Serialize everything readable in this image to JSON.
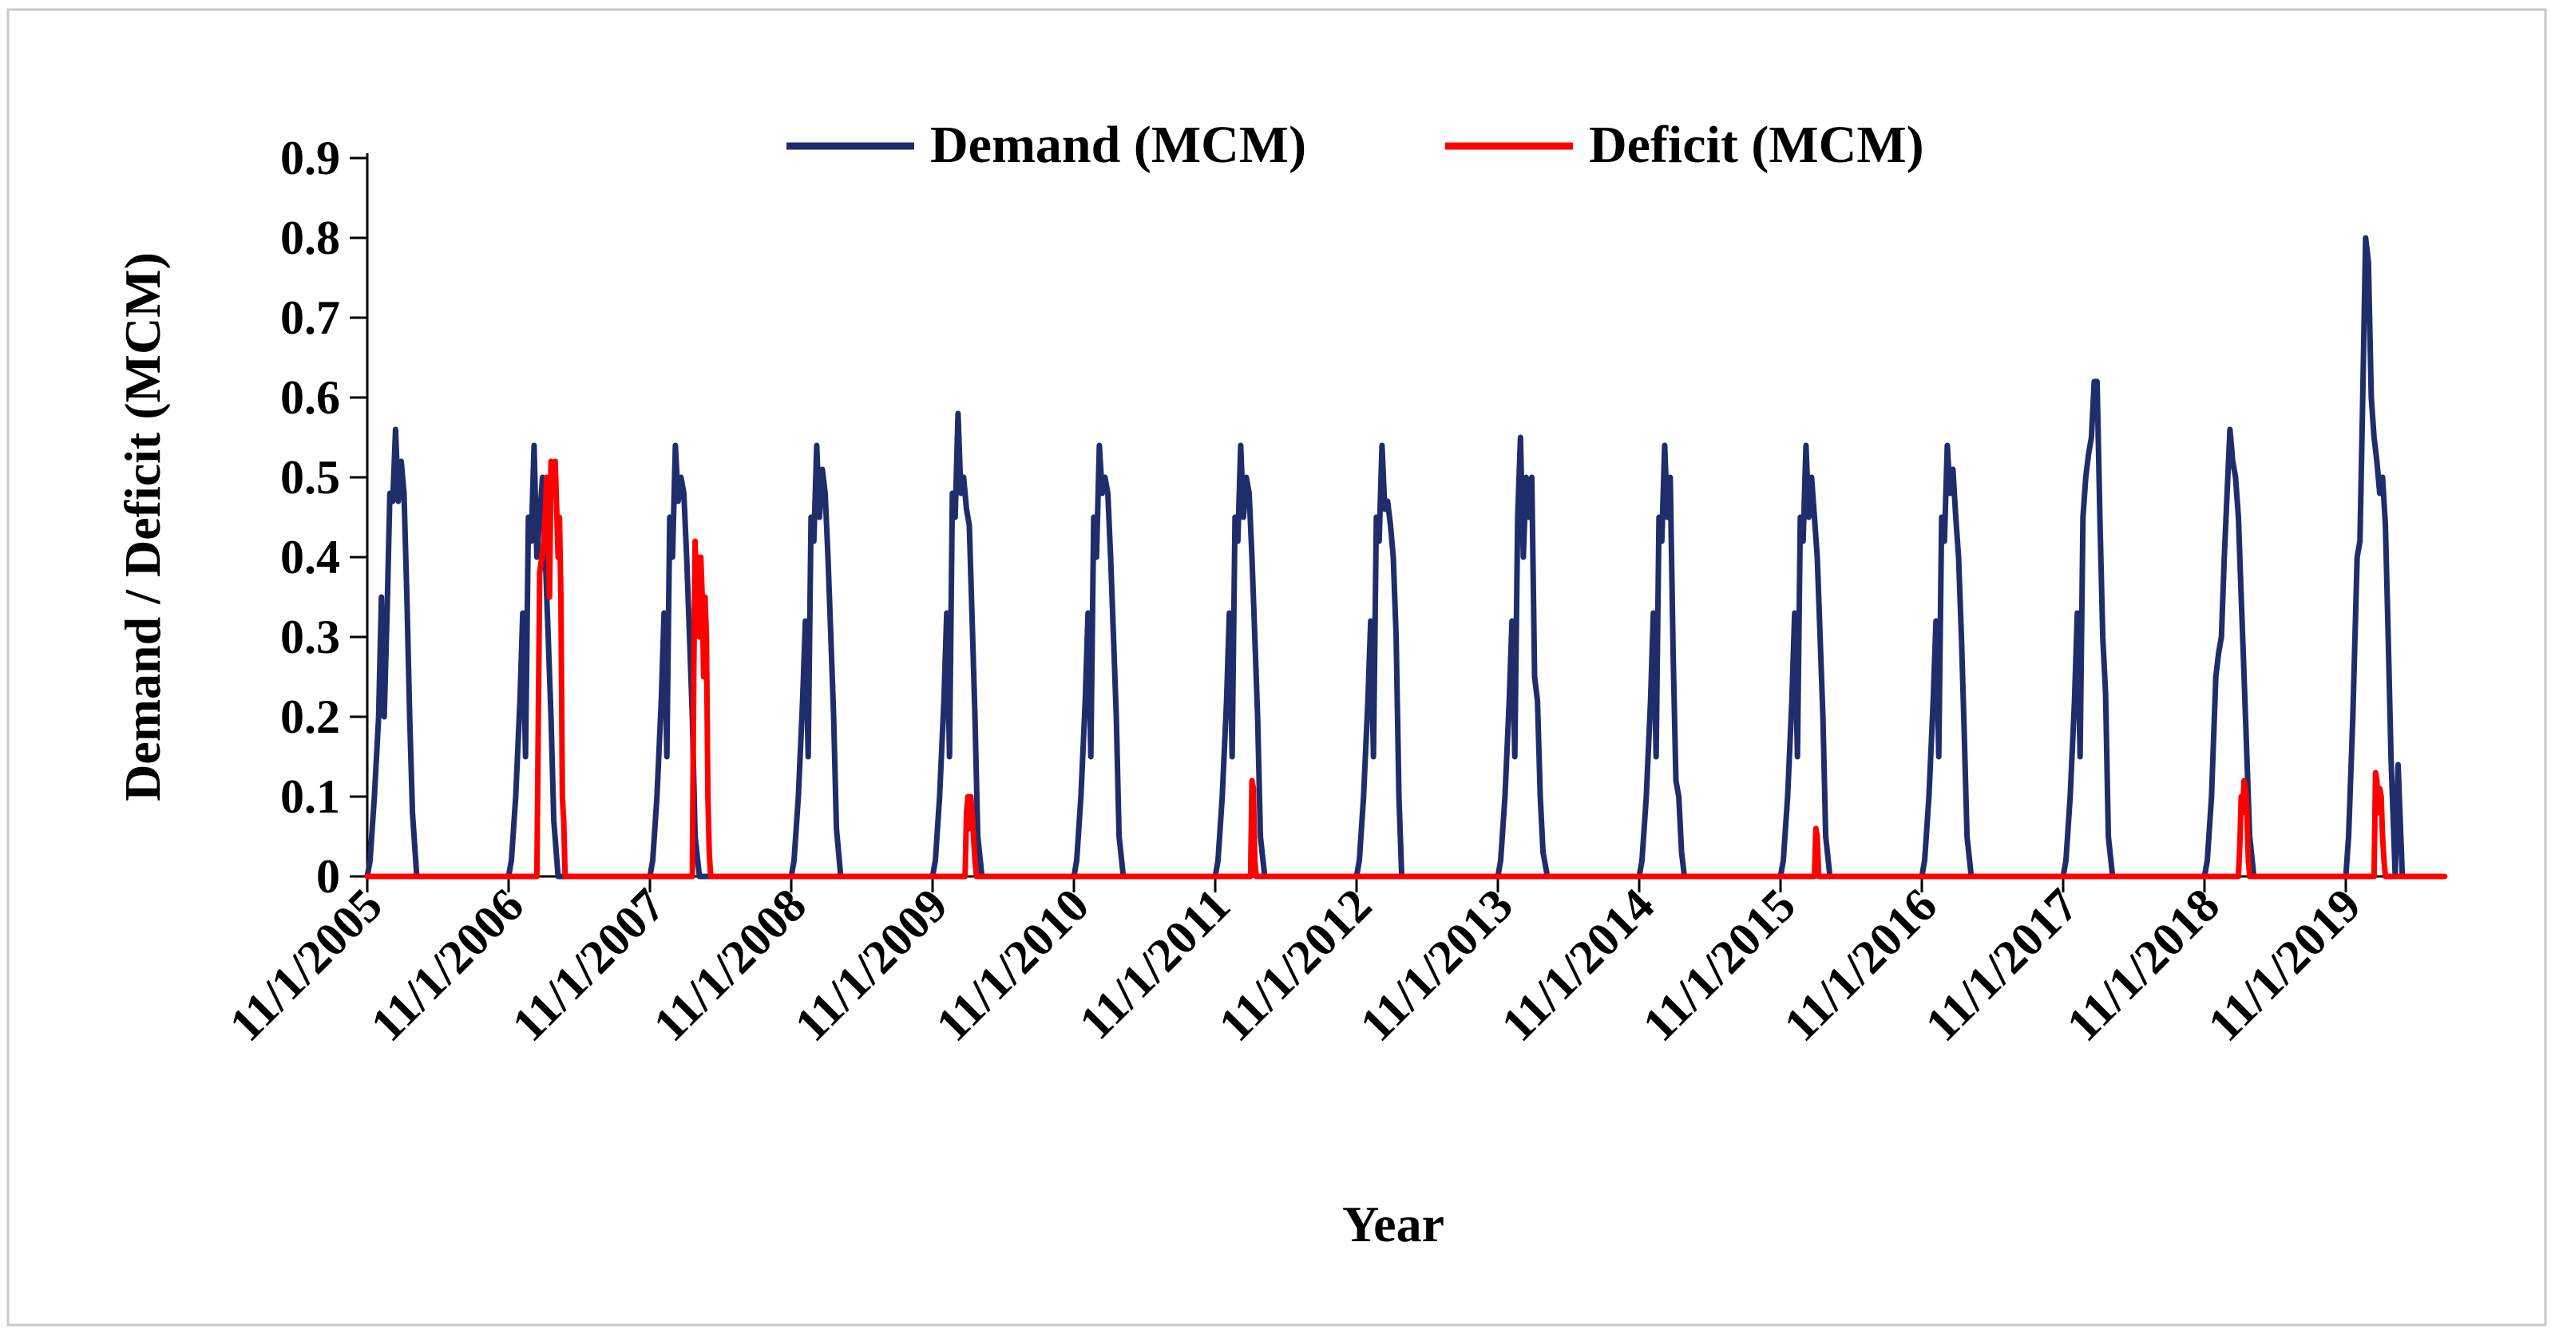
{
  "chart_data": {
    "type": "line",
    "title": "",
    "xlabel": "Year",
    "ylabel": "Demand / Deficit (MCM)",
    "ylim": [
      0,
      0.9
    ],
    "yticks": [
      0,
      0.1,
      0.2,
      0.3,
      0.4,
      0.5,
      0.6,
      0.7,
      0.8,
      0.9
    ],
    "ytick_labels": [
      "0",
      "0.1",
      "0.2",
      "0.3",
      "0.4",
      "0.5",
      "0.6",
      "0.7",
      "0.8",
      "0.9"
    ],
    "x_range_years": [
      0,
      14.7
    ],
    "xtick_labels": [
      "11/1/2005",
      "11/1/2006",
      "11/1/2007",
      "11/1/2008",
      "11/1/2009",
      "11/1/2010",
      "11/1/2011",
      "11/1/2012",
      "11/1/2013",
      "11/1/2014",
      "11/1/2015",
      "11/1/2016",
      "11/1/2017",
      "11/1/2018",
      "11/1/2019"
    ],
    "grid": false,
    "legend_position": "top-center",
    "series": [
      {
        "name": "Demand (MCM)",
        "color": "#1f2d6b",
        "x": [
          0.0,
          0.02,
          0.05,
          0.08,
          0.1,
          0.12,
          0.14,
          0.16,
          0.18,
          0.2,
          0.22,
          0.24,
          0.26,
          0.28,
          0.3,
          0.32,
          0.35,
          0.37,
          0.4,
          0.45,
          1.0,
          1.02,
          1.05,
          1.08,
          1.1,
          1.12,
          1.14,
          1.16,
          1.18,
          1.2,
          1.22,
          1.24,
          1.26,
          1.28,
          1.3,
          1.32,
          1.35,
          1.37,
          1.4,
          1.45,
          2.0,
          2.02,
          2.05,
          2.08,
          2.1,
          2.12,
          2.14,
          2.16,
          2.18,
          2.2,
          2.22,
          2.24,
          2.26,
          2.28,
          2.3,
          2.32,
          2.35,
          2.37,
          2.4,
          2.45,
          3.0,
          3.02,
          3.05,
          3.08,
          3.1,
          3.12,
          3.14,
          3.16,
          3.18,
          3.2,
          3.22,
          3.24,
          3.26,
          3.28,
          3.3,
          3.32,
          3.35,
          3.37,
          3.4,
          3.45,
          4.0,
          4.02,
          4.05,
          4.08,
          4.1,
          4.12,
          4.14,
          4.16,
          4.18,
          4.2,
          4.22,
          4.24,
          4.26,
          4.28,
          4.3,
          4.32,
          4.35,
          4.37,
          4.4,
          4.45,
          5.0,
          5.02,
          5.05,
          5.08,
          5.1,
          5.12,
          5.14,
          5.16,
          5.18,
          5.2,
          5.22,
          5.24,
          5.26,
          5.28,
          5.3,
          5.32,
          5.35,
          5.37,
          5.4,
          5.45,
          6.0,
          6.02,
          6.05,
          6.08,
          6.1,
          6.12,
          6.14,
          6.16,
          6.18,
          6.2,
          6.22,
          6.24,
          6.26,
          6.28,
          6.3,
          6.32,
          6.35,
          6.37,
          6.4,
          6.45,
          7.0,
          7.02,
          7.05,
          7.08,
          7.1,
          7.12,
          7.14,
          7.16,
          7.18,
          7.2,
          7.22,
          7.24,
          7.26,
          7.28,
          7.3,
          7.32,
          7.35,
          7.37,
          7.4,
          7.45,
          8.0,
          8.02,
          8.05,
          8.08,
          8.1,
          8.12,
          8.14,
          8.16,
          8.18,
          8.2,
          8.22,
          8.24,
          8.26,
          8.28,
          8.3,
          8.32,
          8.35,
          8.37,
          8.4,
          8.45,
          9.0,
          9.02,
          9.05,
          9.08,
          9.1,
          9.12,
          9.14,
          9.16,
          9.18,
          9.2,
          9.22,
          9.24,
          9.26,
          9.28,
          9.3,
          9.32,
          9.35,
          9.37,
          9.4,
          9.45,
          10.0,
          10.02,
          10.05,
          10.08,
          10.1,
          10.12,
          10.14,
          10.16,
          10.18,
          10.2,
          10.22,
          10.24,
          10.26,
          10.28,
          10.3,
          10.32,
          10.35,
          10.37,
          10.4,
          10.45,
          11.0,
          11.02,
          11.05,
          11.08,
          11.1,
          11.12,
          11.14,
          11.16,
          11.18,
          11.2,
          11.22,
          11.24,
          11.26,
          11.28,
          11.3,
          11.32,
          11.35,
          11.37,
          11.4,
          11.45,
          12.0,
          12.02,
          12.05,
          12.08,
          12.1,
          12.12,
          12.14,
          12.16,
          12.18,
          12.2,
          12.22,
          12.24,
          12.26,
          12.28,
          12.3,
          12.32,
          12.35,
          12.37,
          12.4,
          12.45,
          13.0,
          13.02,
          13.05,
          13.08,
          13.1,
          13.12,
          13.14,
          13.16,
          13.18,
          13.2,
          13.22,
          13.24,
          13.26,
          13.28,
          13.3,
          13.32,
          13.35,
          13.37,
          13.4,
          13.45,
          14.0,
          14.02,
          14.05,
          14.08,
          14.1,
          14.12,
          14.14,
          14.16,
          14.18,
          14.2,
          14.22,
          14.24,
          14.26,
          14.28,
          14.3,
          14.32,
          14.35,
          14.37,
          14.4,
          14.45
        ],
        "values": [
          0.0,
          0.02,
          0.1,
          0.2,
          0.35,
          0.2,
          0.33,
          0.48,
          0.47,
          0.56,
          0.47,
          0.52,
          0.48,
          0.35,
          0.2,
          0.08,
          0.0,
          0.0,
          0.0,
          0.0,
          0.0,
          0.02,
          0.1,
          0.22,
          0.33,
          0.15,
          0.45,
          0.42,
          0.54,
          0.4,
          0.45,
          0.5,
          0.4,
          0.3,
          0.2,
          0.07,
          0.0,
          0.0,
          0.0,
          0.0,
          0.0,
          0.02,
          0.1,
          0.22,
          0.33,
          0.15,
          0.45,
          0.4,
          0.54,
          0.47,
          0.5,
          0.48,
          0.4,
          0.3,
          0.2,
          0.05,
          0.0,
          0.0,
          0.0,
          0.0,
          0.0,
          0.02,
          0.1,
          0.22,
          0.32,
          0.15,
          0.45,
          0.42,
          0.54,
          0.45,
          0.51,
          0.48,
          0.4,
          0.3,
          0.2,
          0.06,
          0.0,
          0.0,
          0.0,
          0.0,
          0.0,
          0.02,
          0.1,
          0.22,
          0.33,
          0.15,
          0.48,
          0.45,
          0.58,
          0.48,
          0.5,
          0.46,
          0.44,
          0.32,
          0.2,
          0.05,
          0.0,
          0.0,
          0.0,
          0.0,
          0.0,
          0.02,
          0.1,
          0.22,
          0.33,
          0.15,
          0.45,
          0.4,
          0.54,
          0.48,
          0.5,
          0.48,
          0.4,
          0.3,
          0.2,
          0.05,
          0.0,
          0.0,
          0.0,
          0.0,
          0.0,
          0.02,
          0.1,
          0.22,
          0.33,
          0.15,
          0.45,
          0.42,
          0.54,
          0.45,
          0.5,
          0.48,
          0.4,
          0.3,
          0.2,
          0.05,
          0.0,
          0.0,
          0.0,
          0.0,
          0.0,
          0.02,
          0.1,
          0.22,
          0.32,
          0.15,
          0.45,
          0.42,
          0.54,
          0.46,
          0.47,
          0.44,
          0.4,
          0.3,
          0.1,
          0.0,
          0.0,
          0.0,
          0.0,
          0.0,
          0.0,
          0.02,
          0.1,
          0.22,
          0.32,
          0.15,
          0.45,
          0.55,
          0.4,
          0.5,
          0.45,
          0.5,
          0.25,
          0.22,
          0.1,
          0.03,
          0.0,
          0.0,
          0.0,
          0.0,
          0.0,
          0.02,
          0.1,
          0.22,
          0.33,
          0.15,
          0.45,
          0.42,
          0.54,
          0.45,
          0.5,
          0.28,
          0.12,
          0.1,
          0.03,
          0.0,
          0.0,
          0.0,
          0.0,
          0.0,
          0.0,
          0.02,
          0.1,
          0.22,
          0.33,
          0.15,
          0.45,
          0.42,
          0.54,
          0.45,
          0.5,
          0.45,
          0.4,
          0.3,
          0.2,
          0.05,
          0.0,
          0.0,
          0.0,
          0.0,
          0.0,
          0.02,
          0.1,
          0.22,
          0.32,
          0.15,
          0.45,
          0.42,
          0.54,
          0.48,
          0.51,
          0.45,
          0.4,
          0.3,
          0.18,
          0.05,
          0.0,
          0.0,
          0.0,
          0.0,
          0.0,
          0.02,
          0.1,
          0.22,
          0.33,
          0.15,
          0.45,
          0.5,
          0.53,
          0.55,
          0.62,
          0.62,
          0.45,
          0.3,
          0.23,
          0.05,
          0.0,
          0.0,
          0.0,
          0.0,
          0.0,
          0.02,
          0.1,
          0.25,
          0.28,
          0.3,
          0.4,
          0.48,
          0.56,
          0.52,
          0.5,
          0.45,
          0.35,
          0.25,
          0.15,
          0.05,
          0.0,
          0.0,
          0.0,
          0.0,
          0.0,
          0.05,
          0.2,
          0.4,
          0.42,
          0.6,
          0.8,
          0.77,
          0.6,
          0.55,
          0.52,
          0.48,
          0.5,
          0.44,
          0.3,
          0.15,
          0.0,
          0.14,
          0.0,
          0.0
        ]
      },
      {
        "name": "Deficit (MCM)",
        "color": "#ff0000",
        "x": [
          0.0,
          1.2,
          1.22,
          1.25,
          1.27,
          1.29,
          1.3,
          1.31,
          1.33,
          1.35,
          1.36,
          1.37,
          1.38,
          1.39,
          1.4,
          1.41,
          2.3,
          2.31,
          2.32,
          2.33,
          2.34,
          2.35,
          2.36,
          2.37,
          2.38,
          2.39,
          2.4,
          2.41,
          2.42,
          2.43,
          4.23,
          4.24,
          4.25,
          4.26,
          4.27,
          4.28,
          4.29,
          4.3,
          4.31,
          6.25,
          6.26,
          6.27,
          6.28,
          6.29,
          10.24,
          10.25,
          10.26,
          10.27,
          13.24,
          13.25,
          13.26,
          13.27,
          13.28,
          13.29,
          13.3,
          13.31,
          13.32,
          14.2,
          14.21,
          14.22,
          14.23,
          14.24,
          14.25,
          14.26,
          14.27,
          14.28,
          14.7
        ],
        "values": [
          0.0,
          0.0,
          0.38,
          0.42,
          0.5,
          0.35,
          0.52,
          0.5,
          0.52,
          0.4,
          0.45,
          0.35,
          0.1,
          0.07,
          0.0,
          0.0,
          0.0,
          0.25,
          0.42,
          0.35,
          0.4,
          0.3,
          0.4,
          0.35,
          0.25,
          0.35,
          0.3,
          0.1,
          0.03,
          0.0,
          0.0,
          0.08,
          0.1,
          0.06,
          0.1,
          0.08,
          0.05,
          0.02,
          0.0,
          0.0,
          0.12,
          0.11,
          0.02,
          0.0,
          0.0,
          0.06,
          0.05,
          0.0,
          0.0,
          0.04,
          0.1,
          0.08,
          0.12,
          0.11,
          0.08,
          0.02,
          0.0,
          0.0,
          0.13,
          0.12,
          0.08,
          0.11,
          0.1,
          0.05,
          0.02,
          0.0,
          0.0
        ]
      }
    ]
  }
}
